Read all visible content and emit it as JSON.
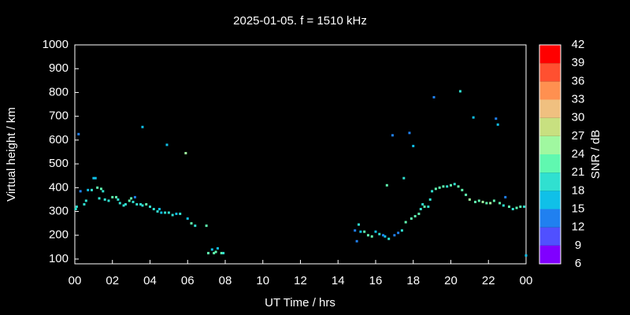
{
  "chart_data": {
    "type": "scatter",
    "title": "2025-01-05. f = 1510 kHz",
    "x_label": "UT Time / hrs",
    "y_label": "Virtual height / km",
    "xlim": [
      0,
      24
    ],
    "ylim": [
      80,
      1000
    ],
    "xticks": [
      {
        "value": 0,
        "label": "00"
      },
      {
        "value": 2,
        "label": "02"
      },
      {
        "value": 4,
        "label": "04"
      },
      {
        "value": 6,
        "label": "06"
      },
      {
        "value": 8,
        "label": "08"
      },
      10,
      12,
      14,
      16,
      18,
      20,
      22,
      {
        "value": 24,
        "label": "00"
      }
    ],
    "yticks": [
      100,
      200,
      300,
      400,
      500,
      600,
      700,
      800,
      900,
      1000
    ],
    "colorbar": {
      "label": "SNR / dB",
      "ticks": [
        6,
        9,
        12,
        15,
        18,
        21,
        24,
        27,
        30,
        33,
        36,
        39,
        42
      ],
      "colors": [
        "#8000ff",
        "#5050ff",
        "#2080f0",
        "#10c0e8",
        "#30e0d0",
        "#60f8b0",
        "#a0f8a0",
        "#c8e080",
        "#f0c080",
        "#ff9050",
        "#ff5030",
        "#ff0000"
      ]
    },
    "x": [
      0.05,
      0.1,
      0.2,
      0.3,
      0.5,
      0.6,
      0.7,
      0.9,
      1.0,
      1.1,
      1.2,
      1.3,
      1.4,
      1.5,
      1.6,
      1.8,
      2.0,
      2.2,
      2.3,
      2.4,
      2.6,
      2.7,
      2.9,
      3.0,
      3.1,
      3.2,
      3.3,
      3.5,
      3.6,
      3.6,
      3.8,
      4.0,
      4.2,
      4.4,
      4.5,
      4.6,
      4.8,
      4.9,
      5.0,
      5.2,
      5.4,
      5.6,
      5.9,
      6.0,
      6.2,
      6.4,
      7.0,
      7.1,
      7.3,
      7.4,
      7.5,
      7.6,
      7.8,
      7.9,
      14.9,
      15.0,
      15.1,
      15.2,
      15.4,
      15.6,
      15.8,
      16.0,
      16.2,
      16.4,
      16.5,
      16.7,
      16.6,
      16.9,
      17.0,
      17.2,
      17.4,
      17.5,
      17.6,
      17.8,
      17.9,
      18.0,
      18.1,
      18.3,
      18.4,
      18.5,
      18.6,
      18.8,
      18.9,
      19.0,
      19.1,
      19.2,
      19.4,
      19.6,
      19.8,
      20.0,
      20.2,
      20.4,
      20.5,
      20.6,
      20.8,
      21.0,
      21.2,
      21.3,
      21.5,
      21.7,
      21.9,
      22.1,
      22.3,
      22.4,
      22.5,
      22.6,
      22.8,
      22.9,
      23.1,
      23.3,
      23.5,
      23.7,
      23.9,
      24.0
    ],
    "values": [
      310,
      320,
      625,
      385,
      330,
      345,
      390,
      390,
      440,
      440,
      400,
      355,
      395,
      385,
      350,
      345,
      360,
      360,
      350,
      335,
      325,
      330,
      345,
      355,
      340,
      360,
      330,
      330,
      325,
      655,
      330,
      320,
      310,
      300,
      310,
      295,
      295,
      580,
      295,
      285,
      290,
      290,
      545,
      270,
      250,
      240,
      240,
      125,
      140,
      125,
      130,
      145,
      125,
      125,
      220,
      175,
      245,
      215,
      215,
      200,
      195,
      215,
      205,
      200,
      195,
      185,
      410,
      620,
      200,
      210,
      220,
      440,
      255,
      630,
      270,
      575,
      280,
      290,
      310,
      330,
      320,
      320,
      350,
      385,
      780,
      395,
      400,
      405,
      405,
      410,
      415,
      405,
      805,
      390,
      370,
      350,
      695,
      340,
      345,
      340,
      335,
      335,
      345,
      690,
      665,
      335,
      325,
      360,
      320,
      310,
      315,
      320,
      320,
      115
    ],
    "snr": [
      18,
      18,
      12,
      12,
      18,
      18,
      15,
      18,
      15,
      15,
      21,
      18,
      21,
      18,
      18,
      18,
      21,
      21,
      18,
      18,
      18,
      18,
      21,
      21,
      18,
      12,
      18,
      18,
      18,
      15,
      21,
      18,
      18,
      18,
      15,
      15,
      18,
      15,
      18,
      18,
      15,
      18,
      24,
      15,
      21,
      18,
      21,
      21,
      15,
      21,
      21,
      15,
      21,
      18,
      12,
      12,
      18,
      15,
      21,
      21,
      21,
      15,
      18,
      12,
      15,
      18,
      21,
      12,
      12,
      12,
      18,
      18,
      21,
      12,
      21,
      15,
      21,
      21,
      18,
      18,
      21,
      18,
      18,
      18,
      12,
      21,
      21,
      21,
      18,
      21,
      18,
      21,
      18,
      21,
      21,
      24,
      15,
      21,
      21,
      24,
      21,
      24,
      21,
      12,
      15,
      21,
      18,
      12,
      21,
      18,
      21,
      21,
      18,
      15
    ]
  }
}
